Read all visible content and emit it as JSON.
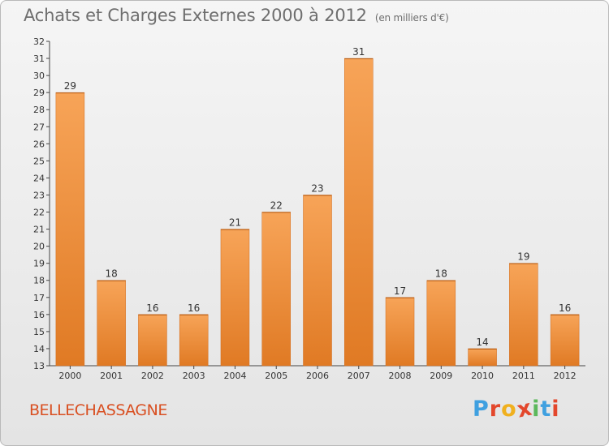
{
  "header": {
    "title": "Achats et Charges Externes 2000 à 2012",
    "unit": "(en milliers d'€)"
  },
  "commune": "BELLECHASSAGNE",
  "logo": {
    "letters": [
      "P",
      "r",
      "o",
      "x",
      "i",
      "t",
      "i"
    ],
    "colors": [
      "#3fa0e0",
      "#e3472c",
      "#f0b01e",
      "#e3472c",
      "#5cb85c",
      "#3fa0e0",
      "#e3472c"
    ]
  },
  "colors": {
    "bar_light": "#f7a458",
    "bar_dark": "#e07a24",
    "axis": "#444444",
    "title": "#6e6e6e",
    "commune": "#d94f21"
  },
  "chart_data": {
    "type": "bar",
    "title": "Achats et Charges Externes 2000 à 2012",
    "subtitle": "(en milliers d'€)",
    "categories": [
      "2000",
      "2001",
      "2002",
      "2003",
      "2004",
      "2005",
      "2006",
      "2007",
      "2008",
      "2009",
      "2010",
      "2011",
      "2012"
    ],
    "values": [
      29,
      18,
      16,
      16,
      21,
      22,
      23,
      31,
      17,
      18,
      14,
      19,
      16
    ],
    "ylim": [
      13,
      32
    ],
    "yticks": [
      13,
      14,
      15,
      16,
      17,
      18,
      19,
      20,
      21,
      22,
      23,
      24,
      25,
      26,
      27,
      28,
      29,
      30,
      31,
      32
    ],
    "grid": false,
    "data_labels": true
  }
}
